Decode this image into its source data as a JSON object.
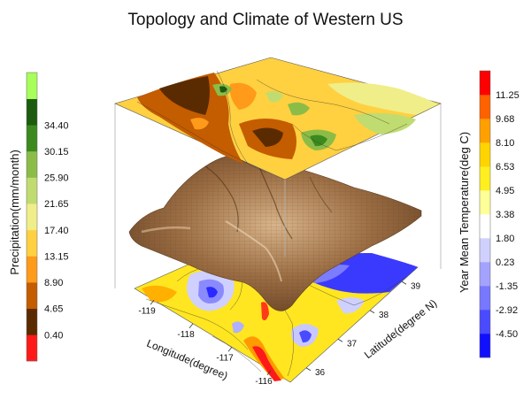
{
  "chart_data": {
    "type": "heatmap",
    "title": "Topology and Climate of Western US",
    "x_axis": {
      "label": "Longitude(degree)",
      "ticks": [
        "-119",
        "-118",
        "-117",
        "-116"
      ],
      "range": [
        -119.5,
        -115.5
      ]
    },
    "y_axis": {
      "label": "Latitude(degree N)",
      "ticks": [
        "36",
        "37",
        "38",
        "39"
      ],
      "range": [
        35.5,
        39.5
      ]
    },
    "layers": [
      "precipitation contour (top plane)",
      "elevation surface (middle)",
      "temperature contour (bottom plane)"
    ],
    "precipitation_scale": {
      "label": "Precipitation(mm/month)",
      "placement": "left",
      "levels": [
        "0.40",
        "4.65",
        "8.90",
        "13.15",
        "17.40",
        "21.65",
        "25.90",
        "30.15",
        "34.40"
      ],
      "colors": [
        "#ff1a1a",
        "#5a2b00",
        "#c45c00",
        "#ff9a1a",
        "#ffd040",
        "#f0ee88",
        "#c0dc70",
        "#8cbc48",
        "#3c8a1e",
        "#1d5c0e",
        "#a8ff5a"
      ]
    },
    "temperature_scale": {
      "label": "Year Mean Temperature(deg C)",
      "placement": "right",
      "levels": [
        "-4.50",
        "-2.92",
        "-1.35",
        "0.23",
        "1.80",
        "3.38",
        "4.95",
        "6.53",
        "8.10",
        "9.68",
        "11.25"
      ],
      "colors": [
        "#1010ff",
        "#4a4aff",
        "#7777ff",
        "#a3a3ff",
        "#d0d0ff",
        "#ffffff",
        "#ffff99",
        "#ffee20",
        "#ffd400",
        "#ffa000",
        "#ff6000",
        "#ff0000"
      ]
    },
    "grid": true
  }
}
